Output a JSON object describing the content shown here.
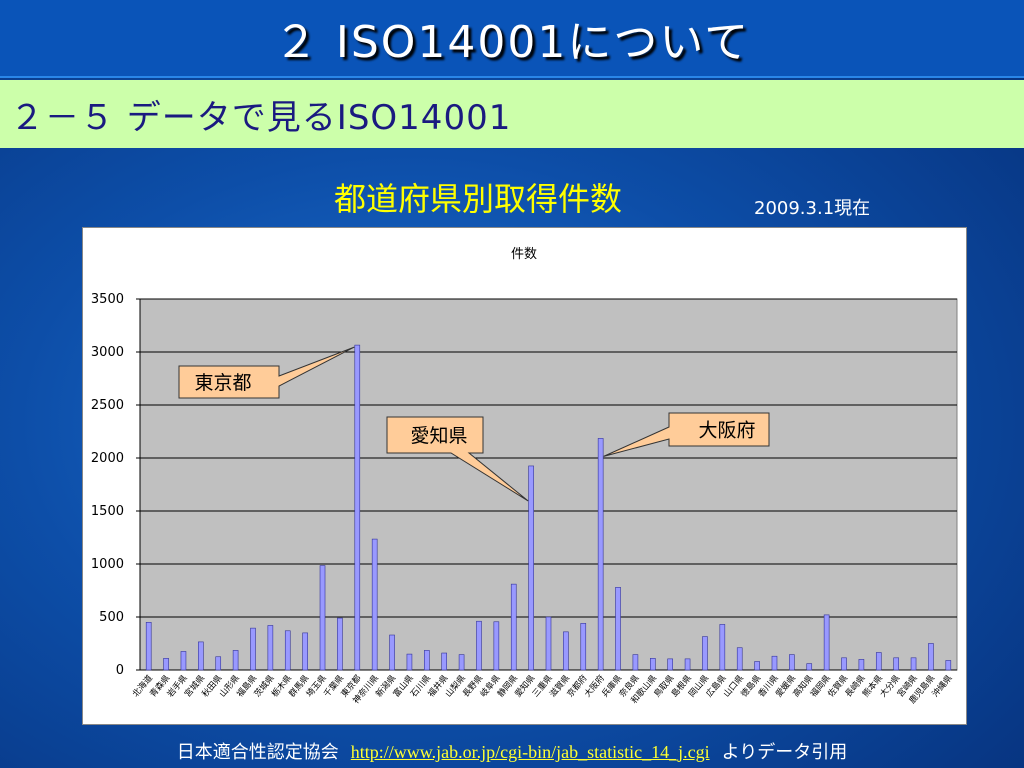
{
  "slide": {
    "title": "２ ISO14001について",
    "subtitle": "２－５ データで見るISO14001"
  },
  "chart_heading": "都道府県別取得件数",
  "date_note": "2009.3.1現在",
  "footer": {
    "source_org": "日本適合性認定協会",
    "link": "http://www.jab.or.jp/cgi-bin/jab_statistic_14_j.cgi",
    "suffix": "よりデータ引用"
  },
  "colors": {
    "bar_fill": "#9999ff",
    "bar_stroke": "#333399",
    "plot_bg": "#c0c0c0",
    "callout_fill": "#ffcc99",
    "heading": "#ffff00"
  },
  "callouts": [
    {
      "label": "東京都",
      "category": "東京都"
    },
    {
      "label": "愛知県",
      "category": "愛知県"
    },
    {
      "label": "大阪府",
      "category": "大阪府"
    }
  ],
  "chart_data": {
    "type": "bar",
    "title": "件数",
    "xlabel": "",
    "ylabel": "",
    "ylim": [
      0,
      3500
    ],
    "yticks": [
      0,
      500,
      1000,
      1500,
      2000,
      2500,
      3000,
      3500
    ],
    "grid": true,
    "categories": [
      "北海道",
      "青森県",
      "岩手県",
      "宮城県",
      "秋田県",
      "山形県",
      "福島県",
      "茨城県",
      "栃木県",
      "群馬県",
      "埼玉県",
      "千葉県",
      "東京都",
      "神奈川県",
      "新潟県",
      "富山県",
      "石川県",
      "福井県",
      "山梨県",
      "長野県",
      "岐阜県",
      "静岡県",
      "愛知県",
      "三重県",
      "滋賀県",
      "京都府",
      "大阪府",
      "兵庫県",
      "奈良県",
      "和歌山県",
      "鳥取県",
      "島根県",
      "岡山県",
      "広島県",
      "山口県",
      "徳島県",
      "香川県",
      "愛媛県",
      "高知県",
      "福岡県",
      "佐賀県",
      "長崎県",
      "熊本県",
      "大分県",
      "宮崎県",
      "鹿児島県",
      "沖縄県"
    ],
    "values": [
      450,
      110,
      175,
      265,
      125,
      185,
      395,
      420,
      370,
      350,
      985,
      490,
      3065,
      1235,
      330,
      150,
      185,
      160,
      145,
      460,
      455,
      810,
      1925,
      500,
      360,
      440,
      2185,
      780,
      145,
      110,
      105,
      105,
      315,
      430,
      210,
      80,
      130,
      145,
      60,
      520,
      115,
      100,
      165,
      115,
      115,
      250,
      90
    ]
  }
}
